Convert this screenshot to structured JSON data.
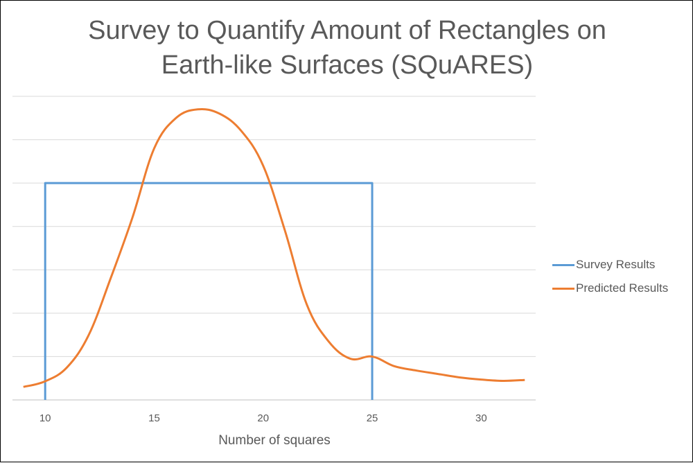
{
  "chart_data": {
    "type": "line",
    "title_lines": [
      "Survey to Quantify Amount of Rectangles on",
      "Earth-like Surfaces (SQuARES)"
    ],
    "xlabel": "Number of squares",
    "ylabel": "",
    "x_ticks": [
      10,
      15,
      20,
      25,
      30
    ],
    "xlim": [
      8.5,
      32.5
    ],
    "ylim": [
      0,
      7
    ],
    "y_gridlines": [
      0,
      1,
      2,
      3,
      4,
      5,
      6,
      7
    ],
    "y_tick_labels_shown": false,
    "grid": "horizontal",
    "legend_position": "right",
    "series": [
      {
        "name": "Survey Results",
        "color": "#5B9BD5",
        "smooth": false,
        "x": [
          10,
          10,
          25,
          25
        ],
        "y": [
          0,
          5,
          5,
          0
        ]
      },
      {
        "name": "Predicted Results",
        "color": "#ED7D31",
        "smooth": true,
        "x": [
          9,
          10,
          11,
          12,
          13,
          14,
          15,
          16,
          17,
          18,
          19,
          20,
          21,
          22,
          23,
          24,
          25,
          26,
          27,
          28,
          29,
          30,
          31,
          32
        ],
        "y": [
          0.3,
          0.43,
          0.75,
          1.5,
          2.8,
          4.2,
          5.8,
          6.5,
          6.7,
          6.6,
          6.2,
          5.4,
          3.9,
          2.2,
          1.35,
          0.95,
          1.0,
          0.78,
          0.68,
          0.6,
          0.52,
          0.47,
          0.44,
          0.46
        ]
      }
    ]
  }
}
